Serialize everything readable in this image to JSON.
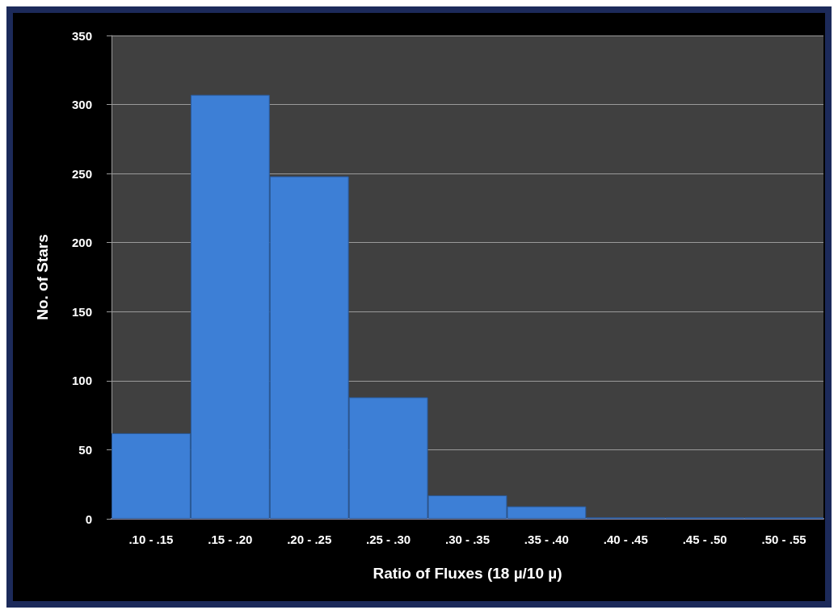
{
  "chart_data": {
    "type": "bar",
    "xlabel": "Ratio of Fluxes (18 µ/10 µ)",
    "ylabel": "No. of Stars",
    "categories": [
      ".10 - .15",
      ".15 - .20",
      ".20 - .25",
      ".25 - .30",
      ".30 - .35",
      ".35 - .40",
      ".40 - .45",
      ".45 - .50",
      ".50 - .55"
    ],
    "values": [
      62,
      307,
      248,
      88,
      17,
      9,
      1,
      1,
      1
    ],
    "color": "#3d7fd6",
    "ylim": [
      0,
      350
    ],
    "yticks": [
      0,
      50,
      100,
      150,
      200,
      250,
      300,
      350
    ],
    "grid": "y"
  }
}
